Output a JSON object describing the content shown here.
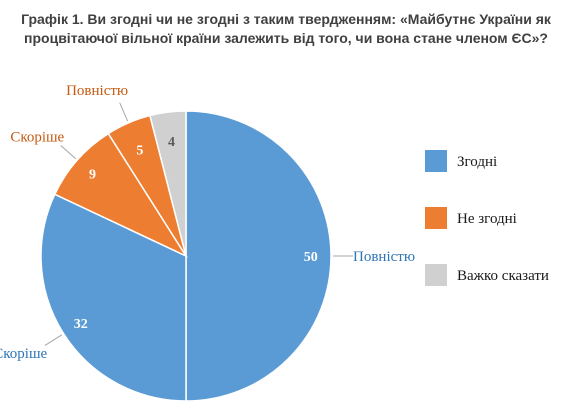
{
  "chart_data": {
    "type": "pie",
    "title_line1": "Графік 1. Ви згодні чи не згодні з таким твердженням: «Майбутнє України як",
    "title_line2": "процвітаючої вільної країни залежить від того, чи вона стане членом ЄС»?",
    "slices": [
      {
        "label": "Повністю",
        "value": 50,
        "group": "Згодні",
        "color": "#5b9bd5",
        "label_color": "#2e75b6"
      },
      {
        "label": "Скоріше",
        "value": 32,
        "group": "Згодні",
        "color": "#5b9bd5",
        "label_color": "#2e75b6"
      },
      {
        "label": "Скоріше",
        "value": 9,
        "group": "Не згодні",
        "color": "#ed7d31",
        "label_color": "#c55a11"
      },
      {
        "label": "Повністю",
        "value": 5,
        "group": "Не згодні",
        "color": "#ed7d31",
        "label_color": "#c55a11"
      },
      {
        "label": "",
        "value": 4,
        "group": "Важко сказати",
        "color": "#d0d0d0",
        "label_color": "#7f7f7f"
      }
    ],
    "legend": [
      {
        "name": "Згодні",
        "color": "#5b9bd5"
      },
      {
        "name": "Не згодні",
        "color": "#ed7d31"
      },
      {
        "name": "Важко сказати",
        "color": "#d0d0d0"
      }
    ],
    "legend_position": "right"
  }
}
